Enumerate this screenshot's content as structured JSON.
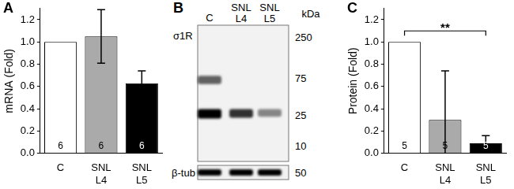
{
  "chart_data": [
    {
      "type": "bar",
      "title": "A",
      "ylabel": "mRNA (Fold)",
      "categories": [
        "C",
        "SNL L4",
        "SNL L5"
      ],
      "values": [
        1.0,
        1.05,
        0.63
      ],
      "errors": [
        0,
        0.24,
        0.11
      ],
      "n": [
        6,
        6,
        6
      ],
      "colors": [
        "#ffffff",
        "#aaaaaa",
        "#000000"
      ],
      "ylim": [
        0,
        1.3
      ],
      "yticks": [
        {
          "value": 0,
          "label": "0.0"
        },
        {
          "value": 0.2,
          "label": "0.2"
        },
        {
          "value": 0.4,
          "label": "0.4"
        },
        {
          "value": 0.6,
          "label": "0.6"
        },
        {
          "value": 0.8,
          "label": "0.8"
        },
        {
          "value": 1.0,
          "label": "1.0"
        },
        {
          "value": 1.2,
          "label": "1.2"
        }
      ],
      "grid": false
    },
    {
      "type": "bar",
      "title": "C",
      "ylabel": "Protein (Fold)",
      "categories": [
        "C",
        "SNL L4",
        "SNL L5"
      ],
      "values": [
        1.0,
        0.3,
        0.09
      ],
      "errors": [
        0,
        0.44,
        0.07
      ],
      "n": [
        5,
        5,
        5
      ],
      "colors": [
        "#ffffff",
        "#aaaaaa",
        "#000000"
      ],
      "ylim": [
        0,
        1.3
      ],
      "yticks": [
        {
          "value": 0,
          "label": "0.0"
        },
        {
          "value": 0.2,
          "label": "0.2"
        },
        {
          "value": 0.4,
          "label": "0.4"
        },
        {
          "value": 0.6,
          "label": "0.6"
        },
        {
          "value": 0.8,
          "label": "0.8"
        },
        {
          "value": 1.0,
          "label": "1.0"
        },
        {
          "value": 1.2,
          "label": "1.2"
        }
      ],
      "grid": false,
      "annotations": [
        {
          "text": "**",
          "from": "C",
          "to": "SNL L5"
        }
      ]
    }
  ],
  "blot": {
    "title": "B",
    "protein_label": "σ1R",
    "lanes": [
      "C",
      "SNL L4",
      "SNL L5"
    ],
    "unit": "kDa",
    "markers": [
      250,
      75,
      25,
      10
    ],
    "bands": [
      {
        "kDa": 72,
        "intensity": [
          0.6,
          0,
          0
        ]
      },
      {
        "kDa": 27,
        "intensity": [
          1,
          0.8,
          0.45
        ]
      }
    ],
    "loading_control": {
      "label": "β-tub",
      "marker": 50,
      "intensity": [
        1,
        1,
        1
      ]
    }
  }
}
